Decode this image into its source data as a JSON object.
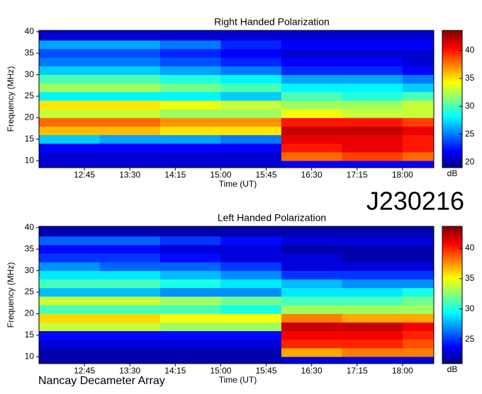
{
  "figure": {
    "title": "J230216",
    "footer": "Nancay Decameter Array"
  },
  "chart_data": [
    {
      "type": "heatmap",
      "title": "Right Handed Polarization",
      "x_label": "Time (UT)",
      "y_label": "Frequency (MHz)",
      "colorbar_label": "dB",
      "x_edges": [
        720,
        780,
        840,
        900,
        960,
        1020,
        1080,
        1111
      ],
      "y_edges": [
        8.4,
        10,
        12,
        14,
        16,
        18,
        20,
        22,
        24,
        26,
        28,
        30,
        32,
        34,
        36,
        38,
        40.3
      ],
      "xlim": [
        720,
        1111
      ],
      "ylim": [
        8.4,
        40.3
      ],
      "zlim": [
        19,
        43.6
      ],
      "xticks": [
        {
          "value": 765,
          "label": "12:45"
        },
        {
          "value": 810,
          "label": "13:30"
        },
        {
          "value": 855,
          "label": "14:15"
        },
        {
          "value": 900,
          "label": "15:00"
        },
        {
          "value": 945,
          "label": "15:45"
        },
        {
          "value": 990,
          "label": "16:30"
        },
        {
          "value": 1035,
          "label": "17:15"
        },
        {
          "value": 1080,
          "label": "18:00"
        }
      ],
      "yticks": [
        10,
        15,
        20,
        25,
        30,
        35,
        40
      ],
      "zticks": [
        20,
        25,
        30,
        35,
        40
      ],
      "z": [
        [
          21,
          21,
          21,
          21,
          22,
          22,
          22
        ],
        [
          21,
          21,
          21,
          21,
          38,
          39,
          38
        ],
        [
          22,
          22,
          22,
          22,
          40,
          41,
          40
        ],
        [
          27,
          26,
          26,
          25,
          41,
          41,
          40
        ],
        [
          36,
          36,
          35,
          35,
          42,
          42,
          41
        ],
        [
          38,
          38,
          37,
          37,
          40,
          40,
          39
        ],
        [
          33,
          33,
          32,
          32,
          34,
          33,
          33
        ],
        [
          35,
          35,
          34,
          33,
          32,
          32,
          33
        ],
        [
          28,
          28,
          28,
          27,
          30,
          29,
          30
        ],
        [
          32,
          32,
          31,
          30,
          28,
          28,
          27
        ],
        [
          30,
          30,
          29,
          28,
          26,
          26,
          25
        ],
        [
          27,
          27,
          26,
          25,
          23,
          23,
          22
        ],
        [
          25,
          25,
          24,
          23,
          22,
          22,
          21
        ],
        [
          24,
          24,
          23,
          22,
          21,
          21,
          21
        ],
        [
          26,
          26,
          25,
          23,
          22,
          22,
          22
        ],
        [
          21,
          21,
          21,
          21,
          21,
          21,
          21
        ]
      ]
    },
    {
      "type": "heatmap",
      "title": "Left Handed Polarization",
      "x_label": "Time (UT)",
      "y_label": "Frequency (MHz)",
      "colorbar_label": "dB",
      "x_edges": [
        720,
        780,
        840,
        900,
        960,
        1020,
        1080,
        1111
      ],
      "y_edges": [
        8.4,
        10,
        12,
        14,
        16,
        18,
        20,
        22,
        24,
        26,
        28,
        30,
        32,
        34,
        36,
        38,
        40.3
      ],
      "xlim": [
        720,
        1111
      ],
      "ylim": [
        8.4,
        40.3
      ],
      "zlim": [
        21,
        43.6
      ],
      "xticks": [
        {
          "value": 765,
          "label": "12:45"
        },
        {
          "value": 810,
          "label": "13:30"
        },
        {
          "value": 855,
          "label": "14:15"
        },
        {
          "value": 900,
          "label": "15:00"
        },
        {
          "value": 945,
          "label": "15:45"
        },
        {
          "value": 990,
          "label": "16:30"
        },
        {
          "value": 1035,
          "label": "17:15"
        },
        {
          "value": 1080,
          "label": "18:00"
        }
      ],
      "yticks": [
        10,
        15,
        20,
        25,
        30,
        35,
        40
      ],
      "zticks": [
        25,
        30,
        35,
        40
      ],
      "z": [
        [
          22,
          22,
          22,
          22,
          23,
          23,
          23
        ],
        [
          22,
          22,
          22,
          22,
          37,
          38,
          38
        ],
        [
          23,
          23,
          23,
          23,
          40,
          40,
          39
        ],
        [
          24,
          24,
          24,
          24,
          41,
          41,
          40
        ],
        [
          34,
          34,
          33,
          33,
          42,
          42,
          41
        ],
        [
          36,
          36,
          35,
          35,
          38,
          37,
          37
        ],
        [
          31,
          31,
          31,
          30,
          33,
          33,
          33
        ],
        [
          34,
          34,
          33,
          32,
          31,
          31,
          32
        ],
        [
          28,
          28,
          27,
          27,
          29,
          29,
          30
        ],
        [
          31,
          31,
          30,
          29,
          28,
          27,
          27
        ],
        [
          29,
          29,
          28,
          27,
          25,
          25,
          25
        ],
        [
          27,
          26,
          26,
          25,
          23,
          23,
          23
        ],
        [
          25,
          25,
          24,
          23,
          23,
          22,
          22
        ],
        [
          24,
          24,
          23,
          23,
          22,
          22,
          22
        ],
        [
          26,
          26,
          25,
          24,
          23,
          23,
          23
        ],
        [
          22,
          22,
          22,
          22,
          22,
          22,
          22
        ]
      ]
    }
  ]
}
